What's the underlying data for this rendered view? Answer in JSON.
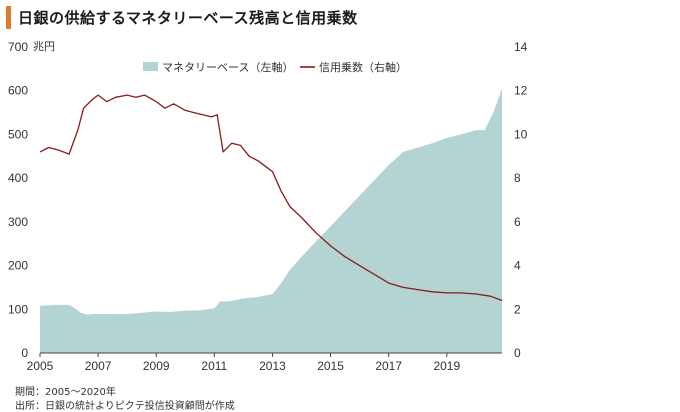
{
  "title": "日銀の供給するマネタリーベース残高と信用乗数",
  "chart_data": {
    "type": "area",
    "left_axis": {
      "unit": "兆円",
      "ticks": [
        0,
        100,
        200,
        300,
        400,
        500,
        600,
        700
      ],
      "ylim": [
        0,
        700
      ]
    },
    "right_axis": {
      "unit": "",
      "ticks": [
        0,
        2,
        4,
        6,
        8,
        10,
        12,
        14
      ],
      "ylim": [
        0,
        14
      ]
    },
    "x_ticks": [
      "2005",
      "2007",
      "2009",
      "2011",
      "2013",
      "2015",
      "2017",
      "2019"
    ],
    "xlim": [
      2005.0,
      2020.9
    ],
    "grid": false,
    "legend_placement": "top",
    "series": [
      {
        "name": "マネタリーベース（左軸）",
        "type": "area",
        "axis": "left",
        "color": "#b3d4d3",
        "x": [
          2005.0,
          2005.5,
          2006.0,
          2006.2,
          2006.4,
          2006.6,
          2007.0,
          2007.5,
          2008.0,
          2008.5,
          2009.0,
          2009.5,
          2010.0,
          2010.5,
          2011.0,
          2011.2,
          2011.5,
          2012.0,
          2012.5,
          2013.0,
          2013.3,
          2013.6,
          2014.0,
          2014.5,
          2015.0,
          2015.5,
          2016.0,
          2016.5,
          2017.0,
          2017.5,
          2018.0,
          2018.5,
          2019.0,
          2019.5,
          2020.0,
          2020.3,
          2020.6,
          2020.9
        ],
        "values": [
          108,
          110,
          110,
          102,
          92,
          88,
          90,
          89,
          89,
          92,
          95,
          94,
          97,
          98,
          102,
          118,
          118,
          125,
          128,
          135,
          160,
          190,
          220,
          255,
          290,
          325,
          360,
          395,
          430,
          460,
          470,
          480,
          492,
          500,
          510,
          510,
          550,
          605
        ]
      },
      {
        "name": "信用乗数（右軸）",
        "type": "line",
        "axis": "right",
        "color": "#8b1a1a",
        "x": [
          2005.0,
          2005.3,
          2005.6,
          2006.0,
          2006.3,
          2006.5,
          2006.8,
          2007.0,
          2007.3,
          2007.6,
          2008.0,
          2008.3,
          2008.6,
          2009.0,
          2009.3,
          2009.6,
          2010.0,
          2010.3,
          2010.6,
          2010.9,
          2011.1,
          2011.3,
          2011.6,
          2011.9,
          2012.2,
          2012.5,
          2012.8,
          2013.0,
          2013.3,
          2013.6,
          2014.0,
          2014.5,
          2015.0,
          2015.5,
          2016.0,
          2016.5,
          2017.0,
          2017.5,
          2018.0,
          2018.5,
          2019.0,
          2019.5,
          2020.0,
          2020.5,
          2020.9
        ],
        "values": [
          9.2,
          9.4,
          9.3,
          9.1,
          10.2,
          11.2,
          11.6,
          11.8,
          11.5,
          11.7,
          11.8,
          11.7,
          11.8,
          11.5,
          11.2,
          11.4,
          11.1,
          11.0,
          10.9,
          10.8,
          10.9,
          9.2,
          9.6,
          9.5,
          9.0,
          8.8,
          8.5,
          8.3,
          7.4,
          6.7,
          6.2,
          5.5,
          4.9,
          4.4,
          4.0,
          3.6,
          3.2,
          3.0,
          2.9,
          2.8,
          2.75,
          2.75,
          2.7,
          2.6,
          2.4
        ]
      }
    ]
  },
  "footer": {
    "period": "期間：2005～2020年",
    "source": "出所：日銀の統計よりピクテ投信投資顧問が作成"
  }
}
